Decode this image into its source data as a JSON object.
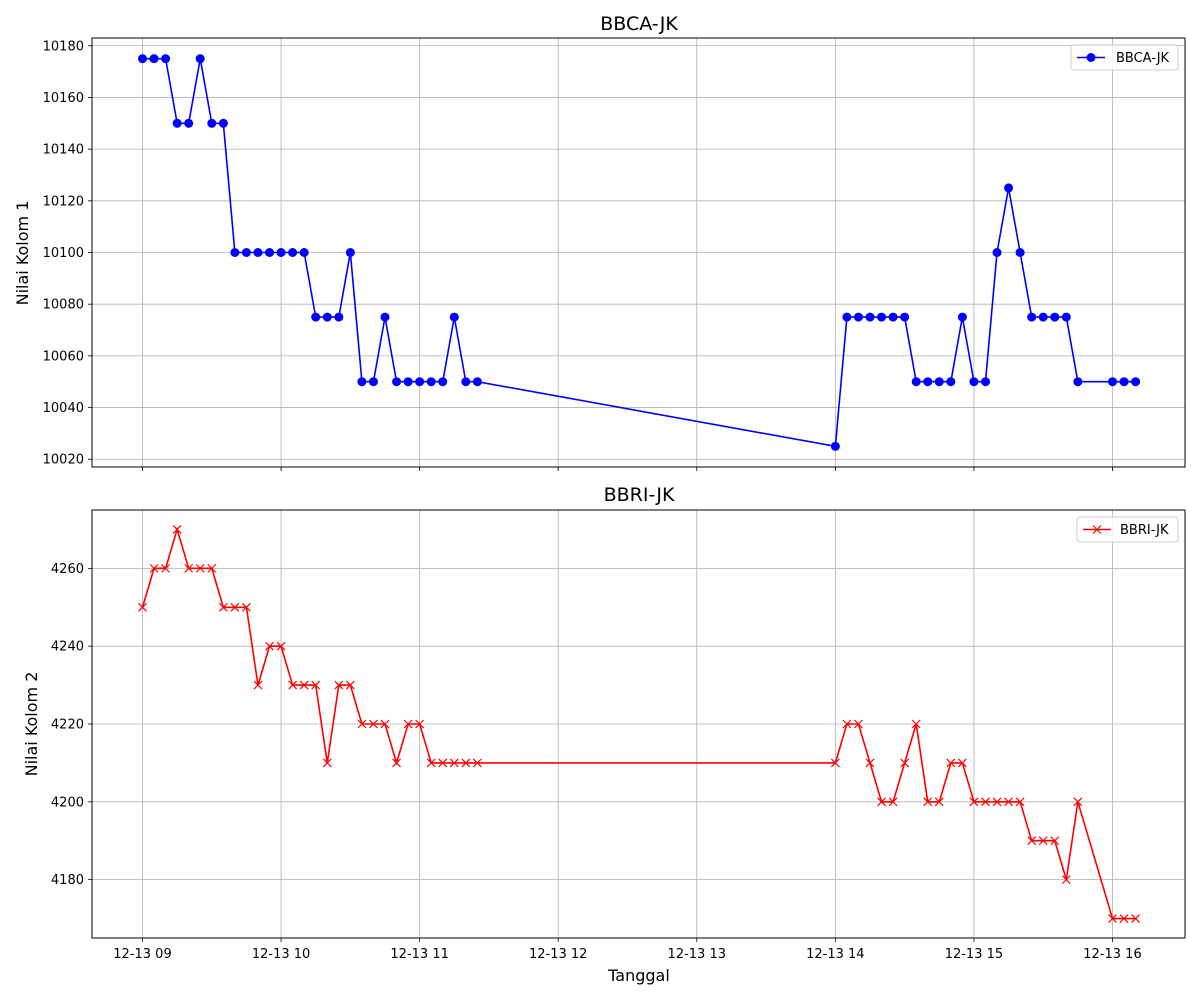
{
  "chart_data": [
    {
      "type": "line",
      "title": "BBCA-JK",
      "xlabel": "",
      "ylabel": "Nilai Kolom 1",
      "ylim": [
        10017,
        10183
      ],
      "yticks": [
        10020,
        10040,
        10060,
        10080,
        10100,
        10120,
        10140,
        10160,
        10180
      ],
      "grid": true,
      "legend_position": "top-right",
      "series": [
        {
          "name": "BBCA-JK",
          "color": "#0000ff",
          "marker": "circle",
          "x": [
            "09:00",
            "09:05",
            "09:10",
            "09:15",
            "09:20",
            "09:25",
            "09:30",
            "09:35",
            "09:40",
            "09:45",
            "09:50",
            "09:55",
            "10:00",
            "10:05",
            "10:10",
            "10:15",
            "10:20",
            "10:25",
            "10:30",
            "10:35",
            "10:40",
            "10:45",
            "10:50",
            "10:55",
            "11:00",
            "11:05",
            "11:10",
            "11:15",
            "11:20",
            "11:25",
            "14:00",
            "14:05",
            "14:10",
            "14:15",
            "14:20",
            "14:25",
            "14:30",
            "14:35",
            "14:40",
            "14:45",
            "14:50",
            "14:55",
            "15:00",
            "15:05",
            "15:10",
            "15:15",
            "15:20",
            "15:25",
            "15:30",
            "15:35",
            "15:40",
            "15:45",
            "16:00",
            "16:05",
            "16:10"
          ],
          "values": [
            10175,
            10175,
            10175,
            10150,
            10150,
            10175,
            10150,
            10150,
            10100,
            10100,
            10100,
            10100,
            10100,
            10100,
            10100,
            10075,
            10075,
            10075,
            10100,
            10050,
            10050,
            10075,
            10050,
            10050,
            10050,
            10050,
            10050,
            10075,
            10050,
            10050,
            10025,
            10075,
            10075,
            10075,
            10075,
            10075,
            10075,
            10050,
            10050,
            10050,
            10050,
            10075,
            10050,
            10050,
            10100,
            10125,
            10100,
            10075,
            10075,
            10075,
            10075,
            10050,
            10050,
            10050,
            10050
          ]
        }
      ]
    },
    {
      "type": "line",
      "title": "BBRI-JK",
      "xlabel": "Tanggal",
      "ylabel": "Nilai Kolom 2",
      "ylim": [
        4165,
        4275
      ],
      "yticks": [
        4180,
        4200,
        4220,
        4240,
        4260
      ],
      "grid": true,
      "legend_position": "top-right",
      "series": [
        {
          "name": "BBRI-JK",
          "color": "#ff0000",
          "marker": "x",
          "x": [
            "09:00",
            "09:05",
            "09:10",
            "09:15",
            "09:20",
            "09:25",
            "09:30",
            "09:35",
            "09:40",
            "09:45",
            "09:50",
            "09:55",
            "10:00",
            "10:05",
            "10:10",
            "10:15",
            "10:20",
            "10:25",
            "10:30",
            "10:35",
            "10:40",
            "10:45",
            "10:50",
            "10:55",
            "11:00",
            "11:05",
            "11:10",
            "11:15",
            "11:20",
            "11:25",
            "14:00",
            "14:05",
            "14:10",
            "14:15",
            "14:20",
            "14:25",
            "14:30",
            "14:35",
            "14:40",
            "14:45",
            "14:50",
            "14:55",
            "15:00",
            "15:05",
            "15:10",
            "15:15",
            "15:20",
            "15:25",
            "15:30",
            "15:35",
            "15:40",
            "15:45",
            "16:00",
            "16:05",
            "16:10"
          ],
          "values": [
            4250,
            4260,
            4260,
            4270,
            4260,
            4260,
            4260,
            4250,
            4250,
            4250,
            4230,
            4240,
            4240,
            4230,
            4230,
            4230,
            4210,
            4230,
            4230,
            4220,
            4220,
            4220,
            4210,
            4220,
            4220,
            4210,
            4210,
            4210,
            4210,
            4210,
            4210,
            4220,
            4220,
            4210,
            4200,
            4200,
            4210,
            4220,
            4200,
            4200,
            4210,
            4210,
            4200,
            4200,
            4200,
            4200,
            4200,
            4190,
            4190,
            4190,
            4180,
            4200,
            4170,
            4170,
            4170
          ]
        }
      ]
    }
  ],
  "x_axis": {
    "ticks": [
      "09:00",
      "10:00",
      "11:00",
      "12:00",
      "13:00",
      "14:00",
      "15:00",
      "16:00"
    ],
    "tick_labels": [
      "12-13 09",
      "12-13 10",
      "12-13 11",
      "12-13 12",
      "12-13 13",
      "12-13 14",
      "12-13 15",
      "12-13 16"
    ]
  }
}
